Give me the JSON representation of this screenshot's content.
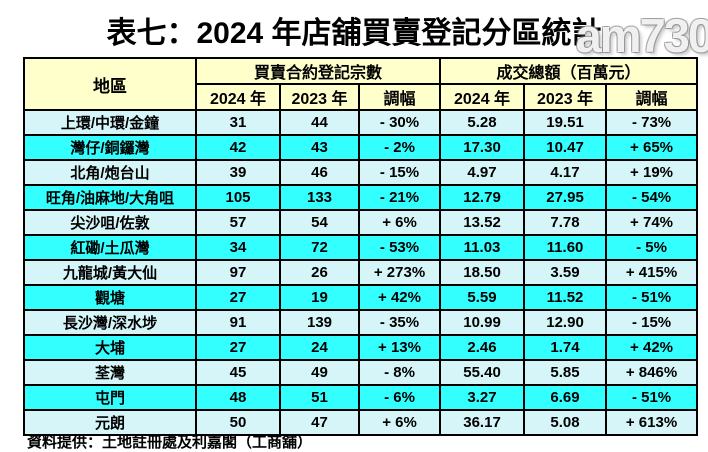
{
  "title": "表七：2024 年店舖買賣登記分區統計",
  "watermark": "am730",
  "source": "資料提供：土地註冊處及利嘉閣（工商舖）",
  "colors": {
    "header_bg": "#FFFFCC",
    "row_light": "#D5F5F8",
    "row_bright": "#33FFFF",
    "border_color": "#000000"
  },
  "table": {
    "district_header": "地區",
    "group1": "買賣合約登記宗數",
    "group2": "成交總額（百萬元）",
    "sub_headers": [
      "2024 年",
      "2023 年",
      "調幅",
      "2024 年",
      "2023 年",
      "調幅"
    ],
    "rows": [
      {
        "district": "上環/中環/金鐘",
        "values": [
          "31",
          "44",
          "- 30%",
          "5.28",
          "19.51",
          "- 73%"
        ]
      },
      {
        "district": "灣仔/銅鑼灣",
        "values": [
          "42",
          "43",
          "- 2%",
          "17.30",
          "10.47",
          "+ 65%"
        ]
      },
      {
        "district": "北角/炮台山",
        "values": [
          "39",
          "46",
          "- 15%",
          "4.97",
          "4.17",
          "+ 19%"
        ]
      },
      {
        "district": "旺角/油麻地/大角咀",
        "values": [
          "105",
          "133",
          "- 21%",
          "12.79",
          "27.95",
          "- 54%"
        ]
      },
      {
        "district": "尖沙咀/佐敦",
        "values": [
          "57",
          "54",
          "+ 6%",
          "13.52",
          "7.78",
          "+ 74%"
        ]
      },
      {
        "district": "紅磡/土瓜灣",
        "values": [
          "34",
          "72",
          "- 53%",
          "11.03",
          "11.60",
          "- 5%"
        ]
      },
      {
        "district": "九龍城/黃大仙",
        "values": [
          "97",
          "26",
          "+ 273%",
          "18.50",
          "3.59",
          "+ 415%"
        ]
      },
      {
        "district": "觀塘",
        "values": [
          "27",
          "19",
          "+ 42%",
          "5.59",
          "11.52",
          "- 51%"
        ]
      },
      {
        "district": "長沙灣/深水埗",
        "values": [
          "91",
          "139",
          "- 35%",
          "10.99",
          "12.90",
          "- 15%"
        ]
      },
      {
        "district": "大埔",
        "values": [
          "27",
          "24",
          "+ 13%",
          "2.46",
          "1.74",
          "+ 42%"
        ]
      },
      {
        "district": "荃灣",
        "values": [
          "45",
          "49",
          "- 8%",
          "55.40",
          "5.85",
          "+ 846%"
        ]
      },
      {
        "district": "屯門",
        "values": [
          "48",
          "51",
          "- 6%",
          "3.27",
          "6.69",
          "- 51%"
        ]
      },
      {
        "district": "元朗",
        "values": [
          "50",
          "47",
          "+ 6%",
          "36.17",
          "5.08",
          "+ 613%"
        ]
      }
    ]
  }
}
